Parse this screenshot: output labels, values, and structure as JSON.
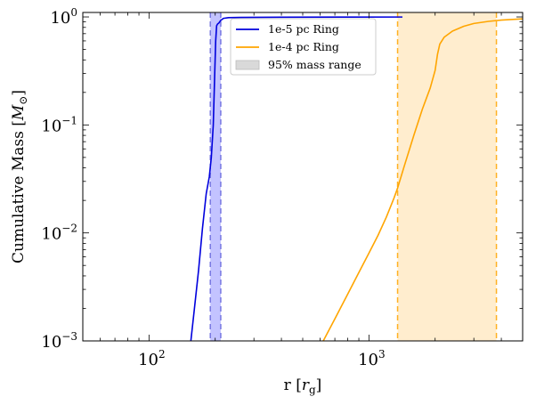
{
  "chart_data": {
    "type": "line",
    "xscale": "log",
    "yscale": "log",
    "xlim": [
      50,
      5000
    ],
    "ylim": [
      0.001,
      1.1
    ],
    "xlabel": "r [r_g]",
    "ylabel": "Cumulative Mass [M_⊙]",
    "x_ticks": [
      {
        "value": 100,
        "base": "10",
        "exp": "2"
      },
      {
        "value": 1000,
        "base": "10",
        "exp": "3"
      }
    ],
    "y_ticks": [
      {
        "value": 0.001,
        "base": "10",
        "exp": "−3"
      },
      {
        "value": 0.01,
        "base": "10",
        "exp": "−2"
      },
      {
        "value": 0.1,
        "base": "10",
        "exp": "−1"
      },
      {
        "value": 1,
        "base": "10",
        "exp": "0"
      }
    ],
    "series": [
      {
        "name": "1e-5 pc Ring",
        "color": "#0000dd",
        "x": [
          155,
          160,
          168,
          175,
          182,
          188,
          192,
          196,
          199,
          201,
          203,
          205,
          208,
          212,
          218,
          230,
          260,
          400,
          800,
          1420
        ],
        "y": [
          0.001,
          0.0018,
          0.0045,
          0.011,
          0.023,
          0.033,
          0.05,
          0.1,
          0.3,
          0.6,
          0.83,
          0.86,
          0.88,
          0.93,
          0.97,
          0.985,
          0.99,
          0.995,
          0.997,
          0.998
        ]
      },
      {
        "name": "1e-4 pc Ring",
        "color": "#ffa500",
        "x": [
          620,
          700,
          800,
          900,
          1000,
          1100,
          1200,
          1300,
          1350,
          1450,
          1600,
          1750,
          1900,
          2000,
          2050,
          2100,
          2200,
          2400,
          2700,
          3000,
          3500,
          4000,
          5000
        ],
        "y": [
          0.001,
          0.0016,
          0.0027,
          0.0043,
          0.0065,
          0.0095,
          0.014,
          0.021,
          0.026,
          0.042,
          0.08,
          0.14,
          0.22,
          0.32,
          0.45,
          0.56,
          0.65,
          0.74,
          0.82,
          0.87,
          0.91,
          0.935,
          0.96
        ]
      }
    ],
    "shaded_ranges": [
      {
        "label": "95% mass range",
        "x0": 190,
        "x1": 212,
        "fill": "#8888ff",
        "edge": "#6666dd",
        "opacity": 0.5
      },
      {
        "x0": 1350,
        "x1": 3800,
        "fill": "#ffd58a",
        "edge": "#ffa500",
        "opacity": 0.42
      }
    ],
    "legend": {
      "position": "upper-center",
      "entries": [
        {
          "label": "1e-5 pc Ring",
          "kind": "line",
          "color": "#0000dd"
        },
        {
          "label": "1e-4 pc Ring",
          "kind": "line",
          "color": "#ffa500"
        },
        {
          "label": "95% mass range",
          "kind": "patch",
          "color": "#d9d9d9"
        }
      ]
    }
  }
}
